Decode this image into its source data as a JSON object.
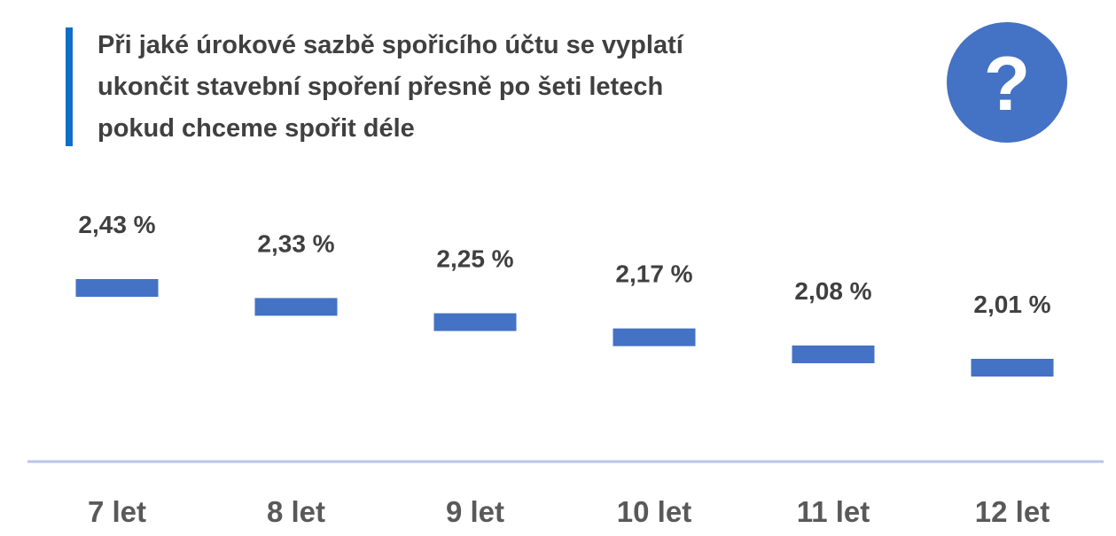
{
  "title": {
    "lines": [
      "Při jaké úrokové sazbě spořicího účtu se vyplatí",
      "ukončit stavební spoření přesně po šeti letech",
      "pokud chceme spořit déle"
    ]
  },
  "question_icon": {
    "name": "question-mark-icon",
    "glyph": "?",
    "color": "#4472C4"
  },
  "colors": {
    "accent_bar": "#0F6FC6",
    "marker": "#4472C4",
    "baseline": "#B4C7E7",
    "text_dark": "#404040",
    "text_category": "#595959"
  },
  "chart_data": {
    "type": "bar",
    "title": "Při jaké úrokové sazbě spořicího účtu se vyplatí ukončit stavební spoření přesně po šeti letech pokud chceme spořit déle",
    "categories": [
      "7 let",
      "8 let",
      "9 let",
      "10 let",
      "11 let",
      "12 let"
    ],
    "values": [
      2.43,
      2.33,
      2.25,
      2.17,
      2.08,
      2.01
    ],
    "value_labels": [
      "2,43 %",
      "2,33 %",
      "2,25 %",
      "2,17 %",
      "2,08 %",
      "2,01 %"
    ],
    "marker_style": "horizontal dash",
    "xlabel": "",
    "ylabel": "",
    "grid": false,
    "legend": "none"
  }
}
